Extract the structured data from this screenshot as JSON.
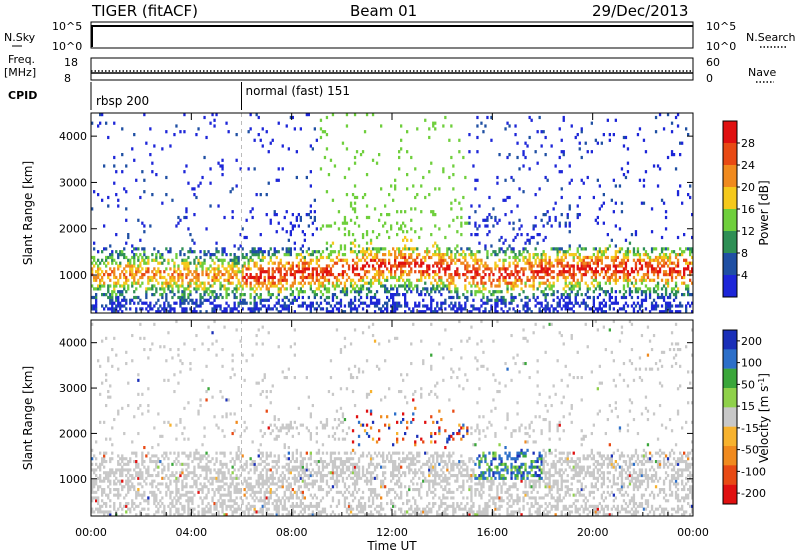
{
  "header": {
    "radar": "TIGER (fitACF)",
    "beam": "Beam 01",
    "date": "29/Dec/2013"
  },
  "nsky_panel": {
    "left_label": "N.Sky",
    "right_label": "N.Search",
    "left_ticks": [
      "10^5",
      "10^0"
    ],
    "right_ticks": [
      "10^5",
      "10^0"
    ]
  },
  "freq_panel": {
    "left_label": "Freq.",
    "left_unit": "[MHz]",
    "right_label": "Nave",
    "left_ticks": [
      "18",
      "8"
    ],
    "right_ticks": [
      "60",
      "0"
    ]
  },
  "cpid": {
    "label": "CPID",
    "modes": [
      {
        "name": "rbsp 200",
        "start_hour": 0
      },
      {
        "name": "normal (fast) 151",
        "start_hour": 6
      }
    ]
  },
  "x_axis": {
    "label": "Time UT",
    "range": [
      0,
      24
    ],
    "tick_labels": [
      "00:00",
      "04:00",
      "08:00",
      "12:00",
      "16:00",
      "20:00",
      "00:00"
    ]
  },
  "colors": {
    "power": [
      "#1d26d8",
      "#1f4fa3",
      "#2e8f55",
      "#6fcf3c",
      "#f5c91c",
      "#f08a1e",
      "#e84a14",
      "#e01010"
    ],
    "velocity": [
      "#e01010",
      "#e84a14",
      "#f08a1e",
      "#f7b22e",
      "#c8c8c8",
      "#8fd14a",
      "#3aa63a",
      "#2c6fc9",
      "#1a2fb8"
    ],
    "ground_scatter": "#c8c8c8"
  },
  "chart_data": [
    {
      "type": "heatmap",
      "title": "",
      "xlabel": "",
      "ylabel": "Slant Range [km]",
      "xlim": [
        0,
        24
      ],
      "ylim": [
        180,
        4500
      ],
      "y_ticks": [
        "1000",
        "2000",
        "3000",
        "4000"
      ],
      "colorbar": {
        "label": "Power [dB]",
        "ticks": [
          "4",
          "8",
          "12",
          "16",
          "20",
          "24",
          "28"
        ],
        "range": [
          0,
          32
        ]
      },
      "series": [
        {
          "name": "",
          "x": [
            0,
            2,
            4,
            6,
            8,
            10,
            12,
            14,
            16,
            18,
            20,
            22,
            24
          ],
          "y": [
            1000,
            1050,
            1000,
            950,
            1050,
            1100,
            1250,
            1150,
            1000,
            1100,
            1150,
            1150,
            1100
          ]
        }
      ]
    },
    {
      "type": "heatmap",
      "title": "",
      "xlabel": "Time UT",
      "ylabel": "Slant Range [km]",
      "xlim": [
        0,
        24
      ],
      "ylim": [
        180,
        4500
      ],
      "y_ticks": [
        "1000",
        "2000",
        "3000",
        "4000"
      ],
      "colorbar": {
        "label": "Velocity [m s^-1]",
        "ticks": [
          "200",
          "100",
          "50",
          "15",
          "-15",
          "-50",
          "-100",
          "-200"
        ],
        "range": [
          -250,
          250
        ]
      },
      "series": [
        {
          "name": "",
          "x": [
            10.5,
            12,
            14,
            15.5,
            16.5,
            17.5
          ],
          "y": [
            1800,
            2100,
            2300,
            1700,
            1400,
            1300
          ]
        }
      ]
    }
  ]
}
